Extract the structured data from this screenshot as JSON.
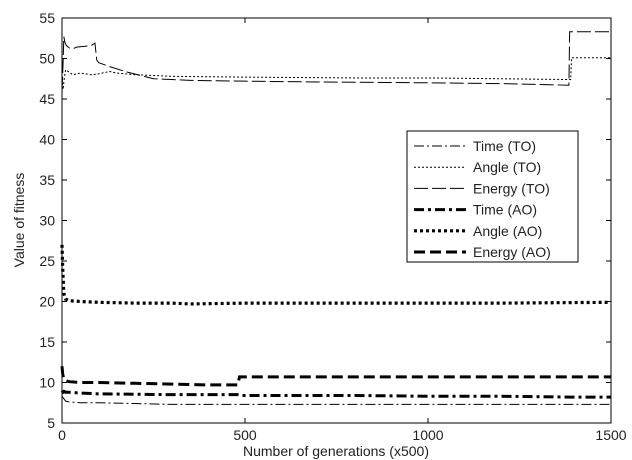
{
  "chart_data": {
    "type": "line",
    "title": "",
    "xlabel": "Number of generations (x500)",
    "ylabel": "Value of fitness",
    "xlim": [
      0,
      1500
    ],
    "ylim": [
      5,
      55
    ],
    "xticks": [
      0,
      500,
      1000,
      1500
    ],
    "yticks": [
      5,
      10,
      15,
      20,
      25,
      30,
      35,
      40,
      45,
      50,
      55
    ],
    "grid": false,
    "legend_position": "right",
    "series": [
      {
        "name": "Time (TO)",
        "style": "dashdot-thin",
        "x": [
          0,
          5,
          10,
          20,
          50,
          100,
          200,
          300,
          500,
          800,
          1000,
          1200,
          1400,
          1500
        ],
        "y": [
          8.3,
          8.0,
          7.7,
          7.6,
          7.5,
          7.5,
          7.4,
          7.3,
          7.3,
          7.3,
          7.3,
          7.3,
          7.3,
          7.3
        ]
      },
      {
        "name": "Angle (TO)",
        "style": "dotted-thin",
        "x": [
          0,
          3,
          6,
          10,
          20,
          30,
          50,
          80,
          100,
          130,
          150,
          200,
          300,
          500,
          800,
          1000,
          1200,
          1390,
          1392,
          1400,
          1500
        ],
        "y": [
          47.5,
          46.2,
          47.5,
          48.6,
          48.3,
          48.0,
          48.2,
          48.0,
          48.1,
          48.4,
          48.2,
          48.0,
          47.8,
          47.7,
          47.6,
          47.6,
          47.5,
          47.4,
          50.1,
          50.1,
          50.1
        ]
      },
      {
        "name": "Energy (TO)",
        "style": "dashed-thin",
        "x": [
          0,
          3,
          5,
          8,
          12,
          20,
          30,
          40,
          60,
          80,
          90,
          95,
          100,
          130,
          180,
          250,
          300,
          350,
          500,
          700,
          1000,
          1200,
          1300,
          1385,
          1387,
          1400,
          1500
        ],
        "y": [
          46.0,
          49.5,
          52.7,
          52.0,
          51.6,
          51.3,
          51.2,
          51.4,
          51.5,
          51.6,
          51.9,
          49.8,
          49.5,
          49.0,
          48.3,
          47.5,
          47.4,
          47.3,
          47.2,
          47.1,
          47.0,
          46.9,
          46.8,
          46.7,
          53.3,
          53.3,
          53.3
        ]
      },
      {
        "name": "Time (AO)",
        "style": "dashdot-thick",
        "x": [
          0,
          3,
          6,
          10,
          20,
          50,
          100,
          300,
          480,
          490,
          800,
          1000,
          1200,
          1390,
          1500
        ],
        "y": [
          9.0,
          8.8,
          8.9,
          8.8,
          8.8,
          8.7,
          8.6,
          8.5,
          8.5,
          8.4,
          8.4,
          8.3,
          8.3,
          8.2,
          8.2
        ]
      },
      {
        "name": "Angle (AO)",
        "style": "dotted-thick",
        "x": [
          0,
          2,
          5,
          10,
          20,
          50,
          100,
          200,
          300,
          350,
          500,
          800,
          1000,
          1200,
          1500
        ],
        "y": [
          27.0,
          24.0,
          21.0,
          20.3,
          20.1,
          20.0,
          19.9,
          19.8,
          19.8,
          19.7,
          19.8,
          19.8,
          19.8,
          19.8,
          19.9
        ]
      },
      {
        "name": "Energy (AO)",
        "style": "dashed-thick",
        "x": [
          0,
          2,
          5,
          8,
          12,
          20,
          50,
          100,
          200,
          300,
          400,
          480,
          485,
          500,
          800,
          1000,
          1200,
          1400,
          1500
        ],
        "y": [
          12.0,
          11.0,
          10.5,
          10.3,
          10.2,
          10.1,
          10.0,
          10.0,
          9.9,
          9.8,
          9.7,
          9.7,
          10.7,
          10.7,
          10.7,
          10.7,
          10.7,
          10.7,
          10.7
        ]
      }
    ]
  }
}
